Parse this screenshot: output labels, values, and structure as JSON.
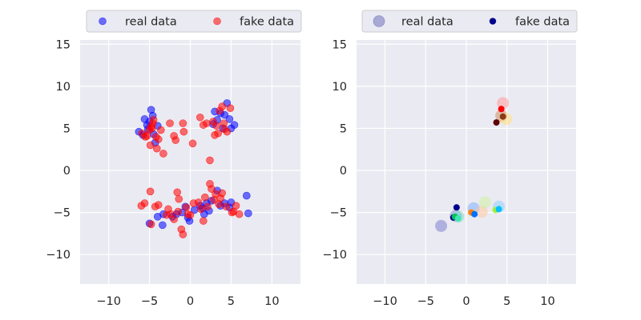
{
  "chart_data": [
    {
      "type": "scatter",
      "xlim": [
        -13.5,
        13.5
      ],
      "ylim": [
        -13.5,
        15.5
      ],
      "xticks": [
        -10,
        -5,
        0,
        5,
        10
      ],
      "xtick_labels": [
        "−10",
        "−5",
        "0",
        "5",
        "10"
      ],
      "yticks": [
        -10,
        -5,
        0,
        5,
        10,
        15
      ],
      "ytick_labels": [
        "−10",
        "−5",
        "0",
        "5",
        "10",
        "15"
      ],
      "grid": true,
      "legend_position": "top",
      "series": [
        {
          "name": "real data",
          "color": "#0000ff",
          "opacity": 0.55,
          "points": [
            [
              -6.3,
              4.6
            ],
            [
              -5.6,
              6.1
            ],
            [
              -5.3,
              5.4
            ],
            [
              -4.8,
              7.2
            ],
            [
              -4.5,
              4.3
            ],
            [
              -4.3,
              3.3
            ],
            [
              -5.0,
              5.8
            ],
            [
              -5.8,
              4.2
            ],
            [
              -4.6,
              6.5
            ],
            [
              -5.2,
              4.9
            ],
            [
              -4.0,
              5.3
            ],
            [
              3.0,
              7.0
            ],
            [
              3.7,
              6.8
            ],
            [
              4.5,
              8.0
            ],
            [
              4.8,
              6.1
            ],
            [
              5.4,
              5.4
            ],
            [
              4.0,
              5.0
            ],
            [
              3.3,
              6.0
            ],
            [
              2.8,
              5.5
            ],
            [
              4.2,
              6.6
            ],
            [
              5.0,
              5.0
            ],
            [
              -5.0,
              -6.3
            ],
            [
              -3.4,
              -6.5
            ],
            [
              -4.0,
              -5.5
            ],
            [
              -3.3,
              -5.2
            ],
            [
              -2.2,
              -5.5
            ],
            [
              -1.7,
              -5.2
            ],
            [
              -1.0,
              -5.0
            ],
            [
              -0.3,
              -5.6
            ],
            [
              -0.1,
              -6.0
            ],
            [
              0.5,
              -4.7
            ],
            [
              1.2,
              -4.2
            ],
            [
              1.7,
              -5.2
            ],
            [
              2.0,
              -3.9
            ],
            [
              2.6,
              -3.6
            ],
            [
              3.3,
              -2.4
            ],
            [
              3.7,
              -4.2
            ],
            [
              4.2,
              -3.9
            ],
            [
              4.8,
              -4.4
            ],
            [
              5.0,
              -3.8
            ],
            [
              6.9,
              -3.0
            ],
            [
              7.1,
              -5.1
            ],
            [
              1.5,
              -4.5
            ],
            [
              -0.6,
              -4.3
            ],
            [
              2.3,
              -4.8
            ]
          ]
        },
        {
          "name": "fake data",
          "color": "#ff0000",
          "opacity": 0.55,
          "points": [
            [
              -5.9,
              4.4
            ],
            [
              -5.5,
              4.0
            ],
            [
              -5.0,
              4.8
            ],
            [
              -4.8,
              5.2
            ],
            [
              -4.6,
              5.6
            ],
            [
              -4.2,
              4.0
            ],
            [
              -3.6,
              4.8
            ],
            [
              -3.3,
              2.0
            ],
            [
              -2.5,
              5.6
            ],
            [
              -2.0,
              4.1
            ],
            [
              -1.8,
              3.6
            ],
            [
              -0.9,
              5.6
            ],
            [
              -0.8,
              4.6
            ],
            [
              0.3,
              3.2
            ],
            [
              -4.9,
              3.0
            ],
            [
              -4.5,
              6.0
            ],
            [
              -4.1,
              2.6
            ],
            [
              -3.9,
              3.7
            ],
            [
              -5.3,
              4.1
            ],
            [
              -4.7,
              5.0
            ],
            [
              1.2,
              6.3
            ],
            [
              1.6,
              5.4
            ],
            [
              2.0,
              5.6
            ],
            [
              2.4,
              1.2
            ],
            [
              2.8,
              5.8
            ],
            [
              3.0,
              4.2
            ],
            [
              3.4,
              4.4
            ],
            [
              3.6,
              7.1
            ],
            [
              3.9,
              7.6
            ],
            [
              4.2,
              4.9
            ],
            [
              4.5,
              4.6
            ],
            [
              4.9,
              7.4
            ],
            [
              3.2,
              5.3
            ],
            [
              4.1,
              5.6
            ],
            [
              -6.0,
              -4.2
            ],
            [
              -5.6,
              -3.9
            ],
            [
              -4.9,
              -2.5
            ],
            [
              -4.8,
              -6.4
            ],
            [
              -4.3,
              -4.3
            ],
            [
              -3.9,
              -4.1
            ],
            [
              -2.7,
              -4.6
            ],
            [
              -2.4,
              -5.2
            ],
            [
              -2.0,
              -5.8
            ],
            [
              -1.6,
              -2.6
            ],
            [
              -1.4,
              -3.4
            ],
            [
              -1.1,
              -7.0
            ],
            [
              -0.9,
              -7.6
            ],
            [
              -0.5,
              -4.4
            ],
            [
              -0.3,
              -5.2
            ],
            [
              0.4,
              -3.9
            ],
            [
              1.0,
              -3.8
            ],
            [
              1.3,
              -4.6
            ],
            [
              1.6,
              -6.0
            ],
            [
              2.1,
              -4.3
            ],
            [
              2.4,
              -1.6
            ],
            [
              2.6,
              -2.2
            ],
            [
              2.9,
              -3.5
            ],
            [
              3.1,
              -2.8
            ],
            [
              3.5,
              -4.0
            ],
            [
              3.9,
              -2.7
            ],
            [
              4.4,
              -4.3
            ],
            [
              5.1,
              -5.0
            ],
            [
              5.6,
              -4.2
            ],
            [
              6.0,
              -5.2
            ],
            [
              -1.5,
              -4.9
            ],
            [
              0.0,
              -5.3
            ],
            [
              1.8,
              -3.2
            ],
            [
              3.7,
              -3.3
            ],
            [
              5.3,
              -4.9
            ],
            [
              -2.9,
              -5.3
            ]
          ]
        }
      ]
    },
    {
      "type": "scatter",
      "xlim": [
        -13.5,
        13.5
      ],
      "ylim": [
        -13.5,
        15.5
      ],
      "xticks": [
        -10,
        -5,
        0,
        5,
        10
      ],
      "xtick_labels": [
        "−10",
        "−5",
        "0",
        "5",
        "10"
      ],
      "yticks": [
        -10,
        -5,
        0,
        5,
        10,
        15
      ],
      "ytick_labels": [
        "−10",
        "−5",
        "0",
        "5",
        "10",
        "15"
      ],
      "grid": true,
      "legend_position": "top",
      "series": [
        {
          "name": "real data",
          "marker": "large translucent circles, colored per cluster",
          "legend_color": "#5a5ab4",
          "points": [
            {
              "x": -3.1,
              "y": -6.6,
              "color": "#7f7fd1"
            },
            {
              "x": -1.3,
              "y": -5.4,
              "color": "#8a8ad8"
            },
            {
              "x": -1.0,
              "y": -5.5,
              "color": "#7fe0c8"
            },
            {
              "x": 0.9,
              "y": -4.5,
              "color": "#80b0ff"
            },
            {
              "x": 1.9,
              "y": -4.9,
              "color": "#ffc8a0"
            },
            {
              "x": 2.3,
              "y": -3.8,
              "color": "#d0f0a0"
            },
            {
              "x": 4.0,
              "y": -4.3,
              "color": "#90d0ff"
            },
            {
              "x": 4.5,
              "y": 8.0,
              "color": "#ff9a9a"
            },
            {
              "x": 4.3,
              "y": 6.5,
              "color": "#d09060"
            },
            {
              "x": 4.9,
              "y": 6.1,
              "color": "#ffe080"
            }
          ]
        },
        {
          "name": "fake data",
          "marker": "small solid circles, colored per cluster",
          "legend_color": "#00008b",
          "points": [
            {
              "x": -1.2,
              "y": -4.4,
              "color": "#00008b"
            },
            {
              "x": -1.6,
              "y": -5.6,
              "color": "#000080"
            },
            {
              "x": -1.4,
              "y": -5.5,
              "color": "#00c060"
            },
            {
              "x": -1.0,
              "y": -5.7,
              "color": "#40e8b0"
            },
            {
              "x": 0.6,
              "y": -5.0,
              "color": "#ff8000"
            },
            {
              "x": 1.0,
              "y": -5.2,
              "color": "#0070ff"
            },
            {
              "x": 3.6,
              "y": -4.7,
              "color": "#a0f040"
            },
            {
              "x": 4.0,
              "y": -4.6,
              "color": "#00c0ff"
            },
            {
              "x": 4.3,
              "y": 7.3,
              "color": "#ff0000"
            },
            {
              "x": 3.7,
              "y": 5.7,
              "color": "#600000"
            },
            {
              "x": 4.5,
              "y": 6.4,
              "color": "#8b3a1a"
            }
          ]
        }
      ]
    }
  ]
}
